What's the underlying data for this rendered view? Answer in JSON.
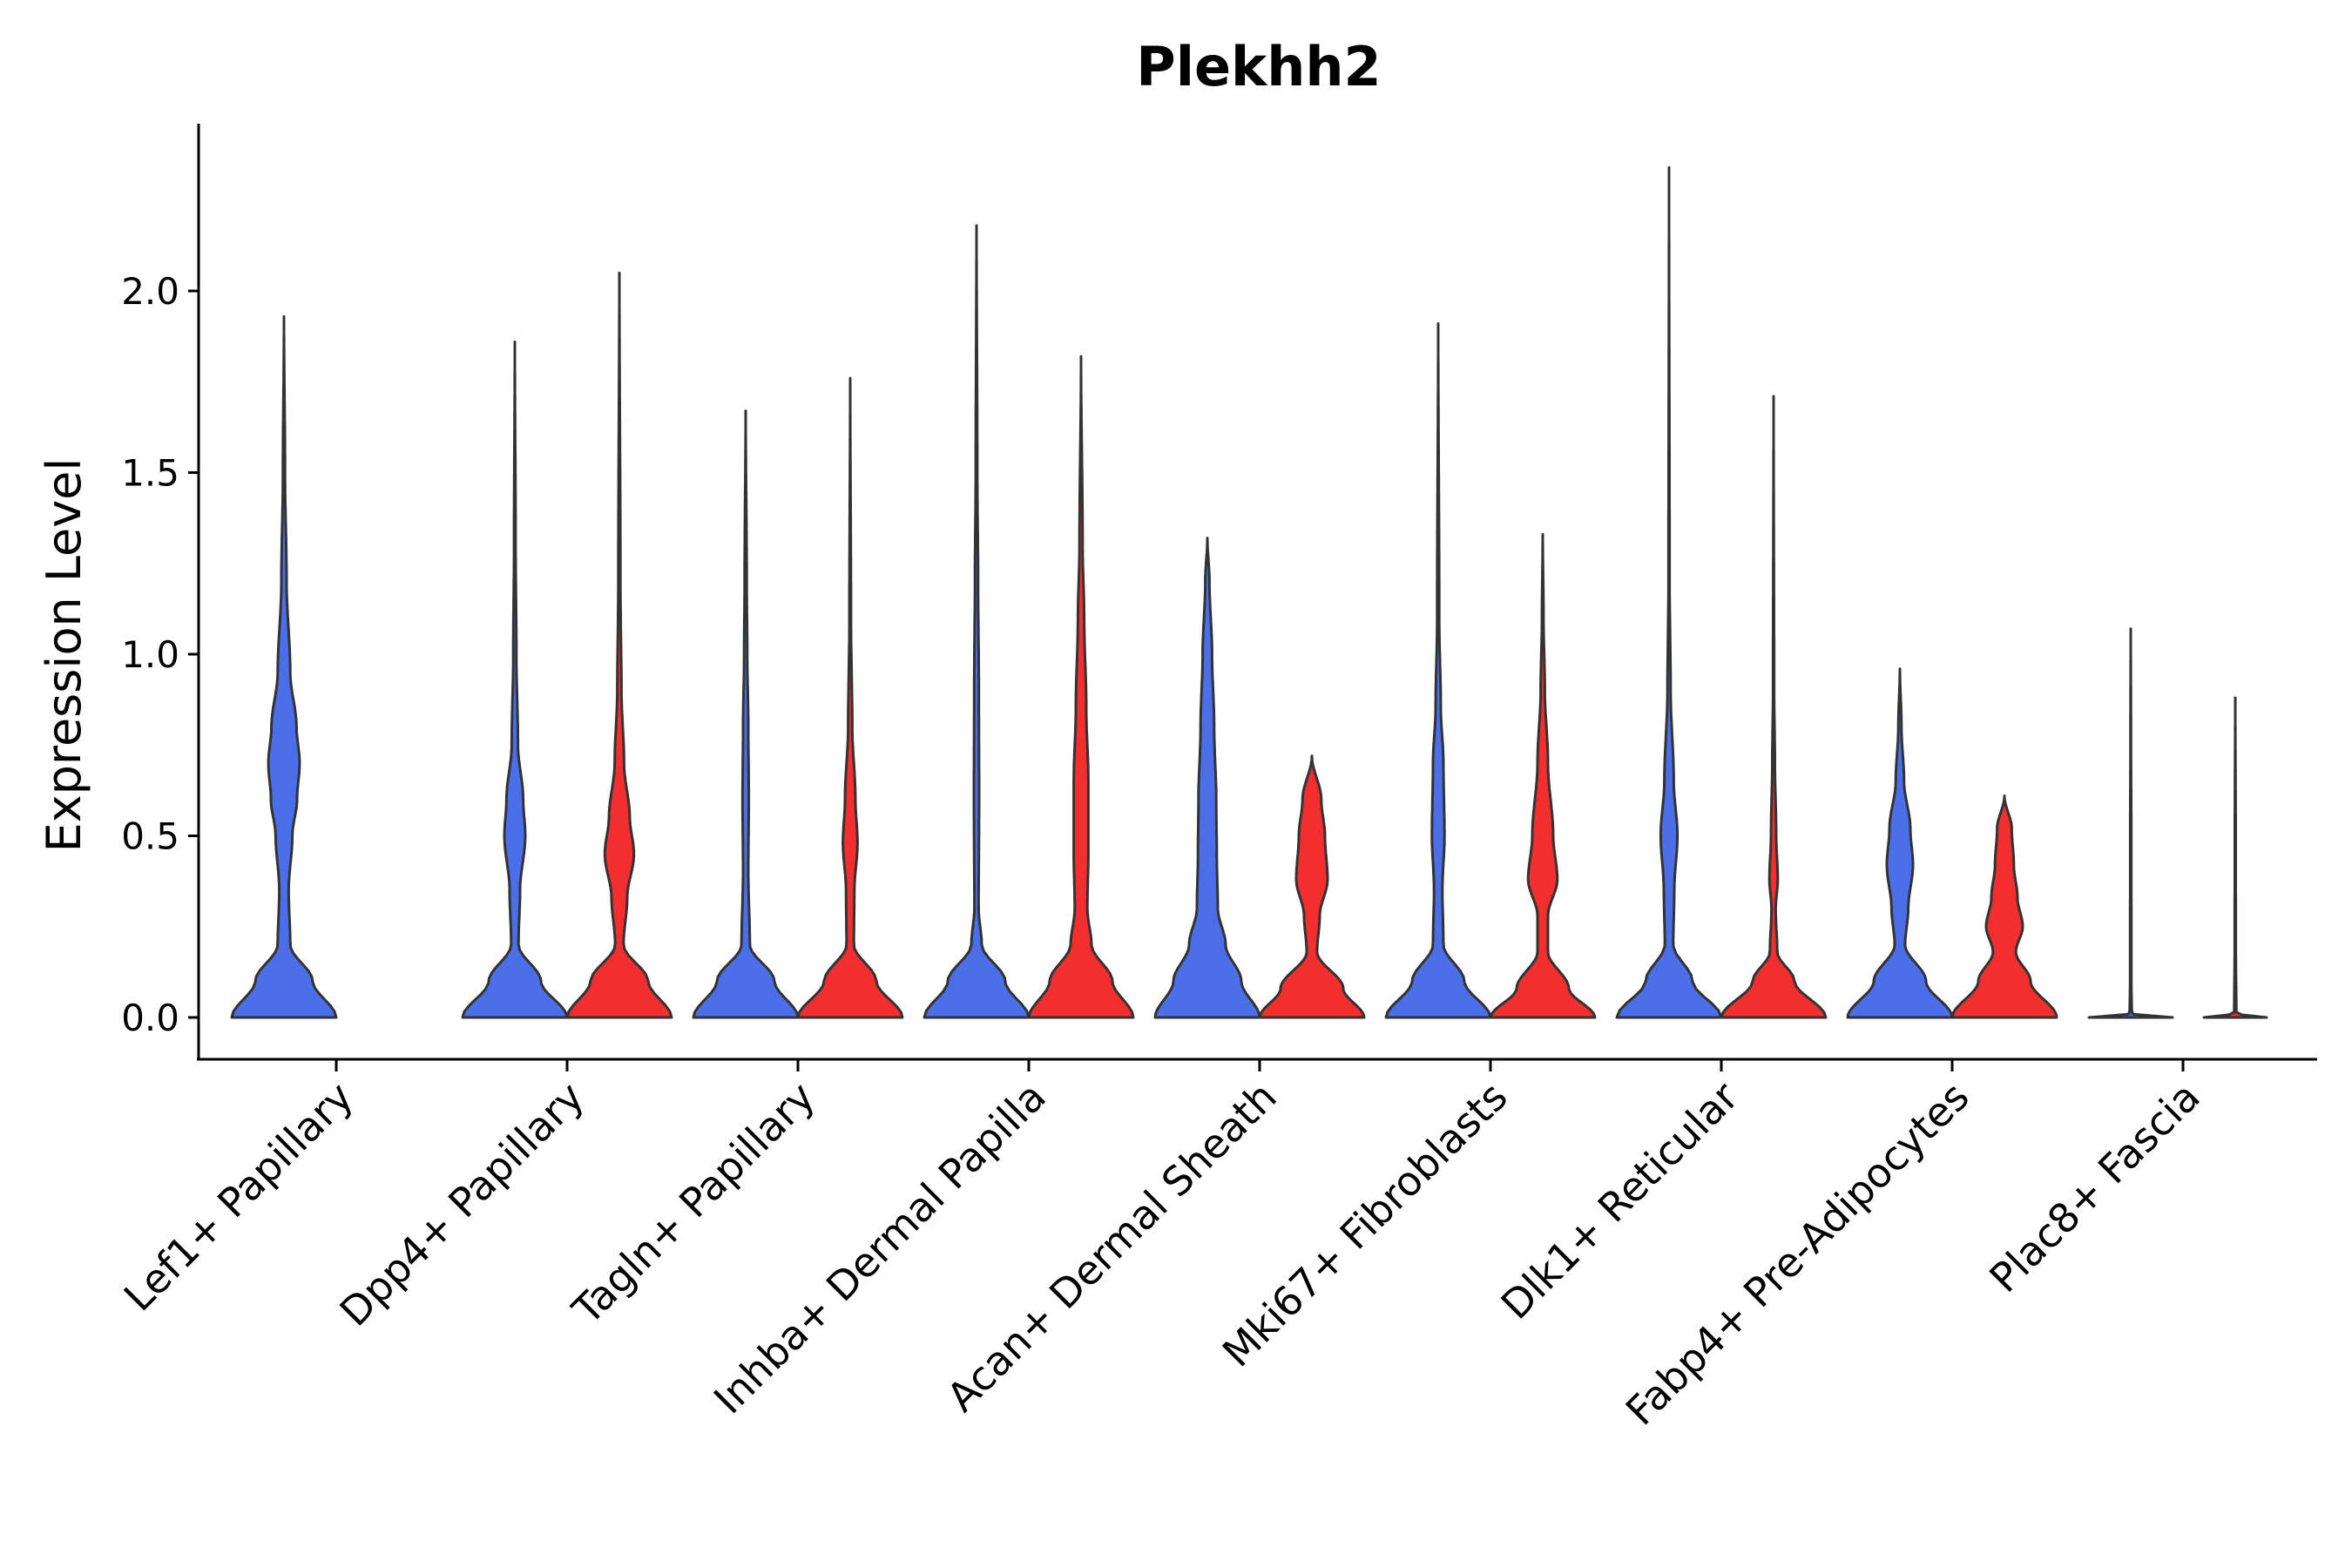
{
  "chart_data": {
    "type": "violin",
    "title": "Plekhh2",
    "xlabel": "",
    "ylabel": "Expression Level",
    "ylim": [
      -0.12,
      2.45
    ],
    "yticks": [
      "0.0",
      "0.5",
      "1.0",
      "1.5",
      "2.0"
    ],
    "yticks_values": [
      0,
      0.5,
      1.0,
      1.5,
      2.0
    ],
    "colors": {
      "group1": "#4A6FE8",
      "group2": "#F22E2E",
      "outline": "#333333",
      "axis": "#000000"
    },
    "categories": [
      "Lef1+ Papillary",
      "Dpp4+ Papillary",
      "Tagln+ Papillary",
      "Inhba+ Dermal Papilla",
      "Acan+ Dermal Sheath",
      "Mki67+ Fibroblasts",
      "Dlk1+ Reticular",
      "Fabp4+ Pre-Adipocytes",
      "Plac8+ Fascia"
    ],
    "violins": [
      {
        "category": "Lef1+ Papillary",
        "group": 1,
        "max": 1.93,
        "profile": [
          [
            0,
            1.0
          ],
          [
            0.1,
            0.55
          ],
          [
            0.2,
            0.12
          ],
          [
            0.35,
            0.09
          ],
          [
            0.5,
            0.16
          ],
          [
            0.6,
            0.25
          ],
          [
            0.7,
            0.3
          ],
          [
            0.8,
            0.24
          ],
          [
            0.95,
            0.12
          ],
          [
            1.2,
            0.05
          ],
          [
            1.5,
            0.02
          ],
          [
            1.93,
            0.0
          ]
        ]
      },
      {
        "category": "Dpp4+ Papillary",
        "group": 1,
        "max": 1.86,
        "profile": [
          [
            0,
            1.0
          ],
          [
            0.1,
            0.5
          ],
          [
            0.2,
            0.07
          ],
          [
            0.35,
            0.1
          ],
          [
            0.5,
            0.2
          ],
          [
            0.6,
            0.16
          ],
          [
            0.75,
            0.06
          ],
          [
            1.0,
            0.03
          ],
          [
            1.3,
            0.015
          ],
          [
            1.86,
            0.0
          ]
        ]
      },
      {
        "category": "Dpp4+ Papillary",
        "group": 2,
        "max": 2.05,
        "profile": [
          [
            0,
            1.0
          ],
          [
            0.1,
            0.55
          ],
          [
            0.2,
            0.08
          ],
          [
            0.33,
            0.15
          ],
          [
            0.45,
            0.28
          ],
          [
            0.55,
            0.2
          ],
          [
            0.7,
            0.09
          ],
          [
            0.9,
            0.04
          ],
          [
            1.2,
            0.02
          ],
          [
            2.05,
            0.0
          ]
        ]
      },
      {
        "category": "Tagln+ Papillary",
        "group": 1,
        "max": 1.67,
        "profile": [
          [
            0,
            1.0
          ],
          [
            0.1,
            0.55
          ],
          [
            0.2,
            0.08
          ],
          [
            0.4,
            0.05
          ],
          [
            0.6,
            0.06
          ],
          [
            0.8,
            0.05
          ],
          [
            1.0,
            0.03
          ],
          [
            1.2,
            0.02
          ],
          [
            1.67,
            0.0
          ]
        ]
      },
      {
        "category": "Tagln+ Papillary",
        "group": 2,
        "max": 1.76,
        "profile": [
          [
            0,
            1.0
          ],
          [
            0.1,
            0.5
          ],
          [
            0.2,
            0.07
          ],
          [
            0.35,
            0.08
          ],
          [
            0.48,
            0.14
          ],
          [
            0.6,
            0.1
          ],
          [
            0.8,
            0.04
          ],
          [
            1.1,
            0.015
          ],
          [
            1.76,
            0.0
          ]
        ]
      },
      {
        "category": "Inhba+ Dermal Papilla",
        "group": 1,
        "max": 2.18,
        "profile": [
          [
            0,
            1.0
          ],
          [
            0.1,
            0.55
          ],
          [
            0.2,
            0.1
          ],
          [
            0.3,
            0.04
          ],
          [
            0.6,
            0.05
          ],
          [
            0.9,
            0.045
          ],
          [
            1.2,
            0.03
          ],
          [
            1.5,
            0.015
          ],
          [
            2.18,
            0.0
          ]
        ]
      },
      {
        "category": "Inhba+ Dermal Papilla",
        "group": 2,
        "max": 1.82,
        "profile": [
          [
            0,
            1.0
          ],
          [
            0.1,
            0.6
          ],
          [
            0.2,
            0.2
          ],
          [
            0.3,
            0.12
          ],
          [
            0.45,
            0.14
          ],
          [
            0.65,
            0.14
          ],
          [
            0.85,
            0.1
          ],
          [
            1.1,
            0.06
          ],
          [
            1.3,
            0.03
          ],
          [
            1.82,
            0.0
          ]
        ]
      },
      {
        "category": "Acan+ Dermal Sheath",
        "group": 1,
        "max": 1.32,
        "profile": [
          [
            0,
            1.0
          ],
          [
            0.1,
            0.65
          ],
          [
            0.2,
            0.35
          ],
          [
            0.3,
            0.2
          ],
          [
            0.45,
            0.18
          ],
          [
            0.6,
            0.17
          ],
          [
            0.8,
            0.13
          ],
          [
            1.0,
            0.09
          ],
          [
            1.2,
            0.04
          ],
          [
            1.32,
            0.0
          ]
        ]
      },
      {
        "category": "Acan+ Dermal Sheath",
        "group": 2,
        "max": 0.72,
        "profile": [
          [
            0,
            1.0
          ],
          [
            0.08,
            0.6
          ],
          [
            0.18,
            0.1
          ],
          [
            0.28,
            0.15
          ],
          [
            0.38,
            0.3
          ],
          [
            0.5,
            0.25
          ],
          [
            0.6,
            0.18
          ],
          [
            0.72,
            0.0
          ]
        ]
      },
      {
        "category": "Mki67+ Fibroblasts",
        "group": 1,
        "max": 1.91,
        "profile": [
          [
            0,
            1.0
          ],
          [
            0.1,
            0.5
          ],
          [
            0.2,
            0.1
          ],
          [
            0.35,
            0.08
          ],
          [
            0.5,
            0.12
          ],
          [
            0.7,
            0.1
          ],
          [
            0.85,
            0.05
          ],
          [
            1.1,
            0.02
          ],
          [
            1.91,
            0.0
          ]
        ]
      },
      {
        "category": "Mki67+ Fibroblasts",
        "group": 2,
        "max": 1.33,
        "profile": [
          [
            0,
            1.0
          ],
          [
            0.08,
            0.5
          ],
          [
            0.18,
            0.1
          ],
          [
            0.28,
            0.1
          ],
          [
            0.38,
            0.28
          ],
          [
            0.5,
            0.2
          ],
          [
            0.7,
            0.1
          ],
          [
            0.9,
            0.04
          ],
          [
            1.1,
            0.015
          ],
          [
            1.33,
            0.0
          ]
        ]
      },
      {
        "category": "Dlk1+ Reticular",
        "group": 1,
        "max": 2.34,
        "profile": [
          [
            0,
            1.0
          ],
          [
            0.1,
            0.45
          ],
          [
            0.2,
            0.08
          ],
          [
            0.35,
            0.1
          ],
          [
            0.5,
            0.16
          ],
          [
            0.65,
            0.09
          ],
          [
            0.9,
            0.03
          ],
          [
            1.2,
            0.01
          ],
          [
            2.34,
            0.0
          ]
        ]
      },
      {
        "category": "Dlk1+ Reticular",
        "group": 2,
        "max": 1.71,
        "profile": [
          [
            0,
            1.0
          ],
          [
            0.1,
            0.4
          ],
          [
            0.18,
            0.07
          ],
          [
            0.3,
            0.04
          ],
          [
            0.38,
            0.08
          ],
          [
            0.5,
            0.05
          ],
          [
            0.7,
            0.025
          ],
          [
            0.9,
            0.01
          ],
          [
            1.71,
            0.0
          ]
        ]
      },
      {
        "category": "Fabp4+ Pre-Adipocytes",
        "group": 1,
        "max": 0.96,
        "profile": [
          [
            0,
            1.0
          ],
          [
            0.1,
            0.5
          ],
          [
            0.2,
            0.1
          ],
          [
            0.3,
            0.16
          ],
          [
            0.42,
            0.25
          ],
          [
            0.52,
            0.2
          ],
          [
            0.65,
            0.08
          ],
          [
            0.8,
            0.03
          ],
          [
            0.96,
            0.0
          ]
        ]
      },
      {
        "category": "Fabp4+ Pre-Adipocytes",
        "group": 2,
        "max": 0.61,
        "profile": [
          [
            0,
            1.0
          ],
          [
            0.1,
            0.5
          ],
          [
            0.18,
            0.22
          ],
          [
            0.25,
            0.35
          ],
          [
            0.33,
            0.25
          ],
          [
            0.42,
            0.18
          ],
          [
            0.52,
            0.14
          ],
          [
            0.61,
            0.0
          ]
        ]
      },
      {
        "category": "Plac8+ Fascia",
        "group": 1,
        "max": 1.07,
        "profile": [
          [
            0,
            0.8
          ],
          [
            0.01,
            0.02
          ],
          [
            0.1,
            0.012
          ],
          [
            0.5,
            0.01
          ],
          [
            0.75,
            0.005
          ],
          [
            1.07,
            0.0
          ]
        ]
      },
      {
        "category": "Plac8+ Fascia",
        "group": 2,
        "max": 0.88,
        "profile": [
          [
            0,
            0.6
          ],
          [
            0.01,
            0.02
          ],
          [
            0.2,
            0.01
          ],
          [
            0.5,
            0.008
          ],
          [
            0.88,
            0.0
          ]
        ]
      }
    ]
  }
}
